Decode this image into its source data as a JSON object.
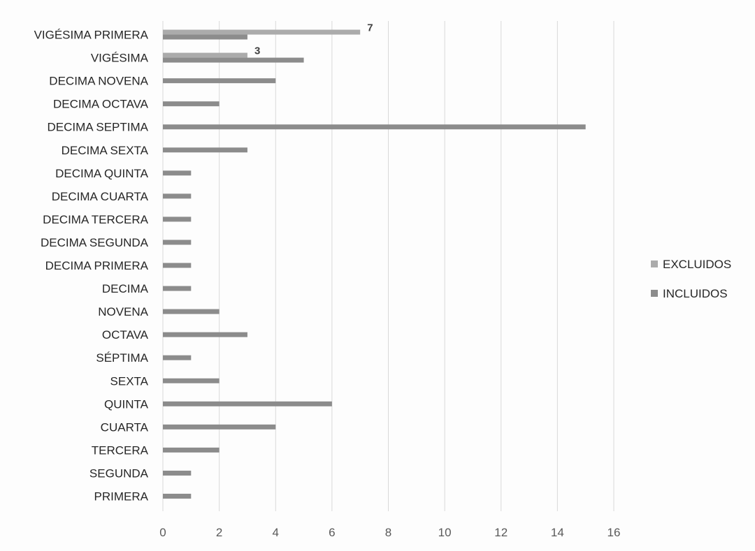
{
  "chart_data": {
    "type": "bar",
    "orientation": "horizontal",
    "title": "",
    "xlabel": "",
    "ylabel": "",
    "categories": [
      "PRIMERA",
      "SEGUNDA",
      "TERCERA",
      "CUARTA",
      "QUINTA",
      "SEXTA",
      "SÉPTIMA",
      "OCTAVA",
      "NOVENA",
      "DECIMA",
      "DECIMA PRIMERA",
      "DECIMA SEGUNDA",
      "DECIMA TERCERA",
      "DECIMA CUARTA",
      "DECIMA QUINTA",
      "DECIMA SEXTA",
      "DECIMA SEPTIMA",
      "DECIMA OCTAVA",
      "DECIMA NOVENA",
      "VIGÉSIMA",
      "VIGÉSIMA PRIMERA"
    ],
    "series": [
      {
        "name": "EXCLUIDOS",
        "color": "#ababab",
        "values": [
          0,
          0,
          0,
          0,
          0,
          0,
          0,
          0,
          0,
          0,
          0,
          0,
          0,
          0,
          0,
          0,
          0,
          0,
          0,
          3,
          7
        ]
      },
      {
        "name": "INCLUIDOS",
        "color": "#8c8c8c",
        "values": [
          1,
          1,
          2,
          4,
          6,
          2,
          1,
          3,
          2,
          1,
          1,
          1,
          1,
          1,
          1,
          3,
          15,
          2,
          4,
          5,
          3
        ]
      }
    ],
    "data_labels": [
      {
        "category": "VIGÉSIMA PRIMERA",
        "series": "EXCLUIDOS",
        "text": "7"
      },
      {
        "category": "VIGÉSIMA",
        "series": "EXCLUIDOS",
        "text": "3"
      }
    ],
    "xlim": [
      0,
      16
    ],
    "xticks": [
      "0",
      "2",
      "4",
      "6",
      "8",
      "10",
      "12",
      "14",
      "16"
    ],
    "grid": true,
    "legend": {
      "placement": "right",
      "order": [
        "EXCLUIDOS",
        "INCLUIDOS"
      ]
    }
  }
}
